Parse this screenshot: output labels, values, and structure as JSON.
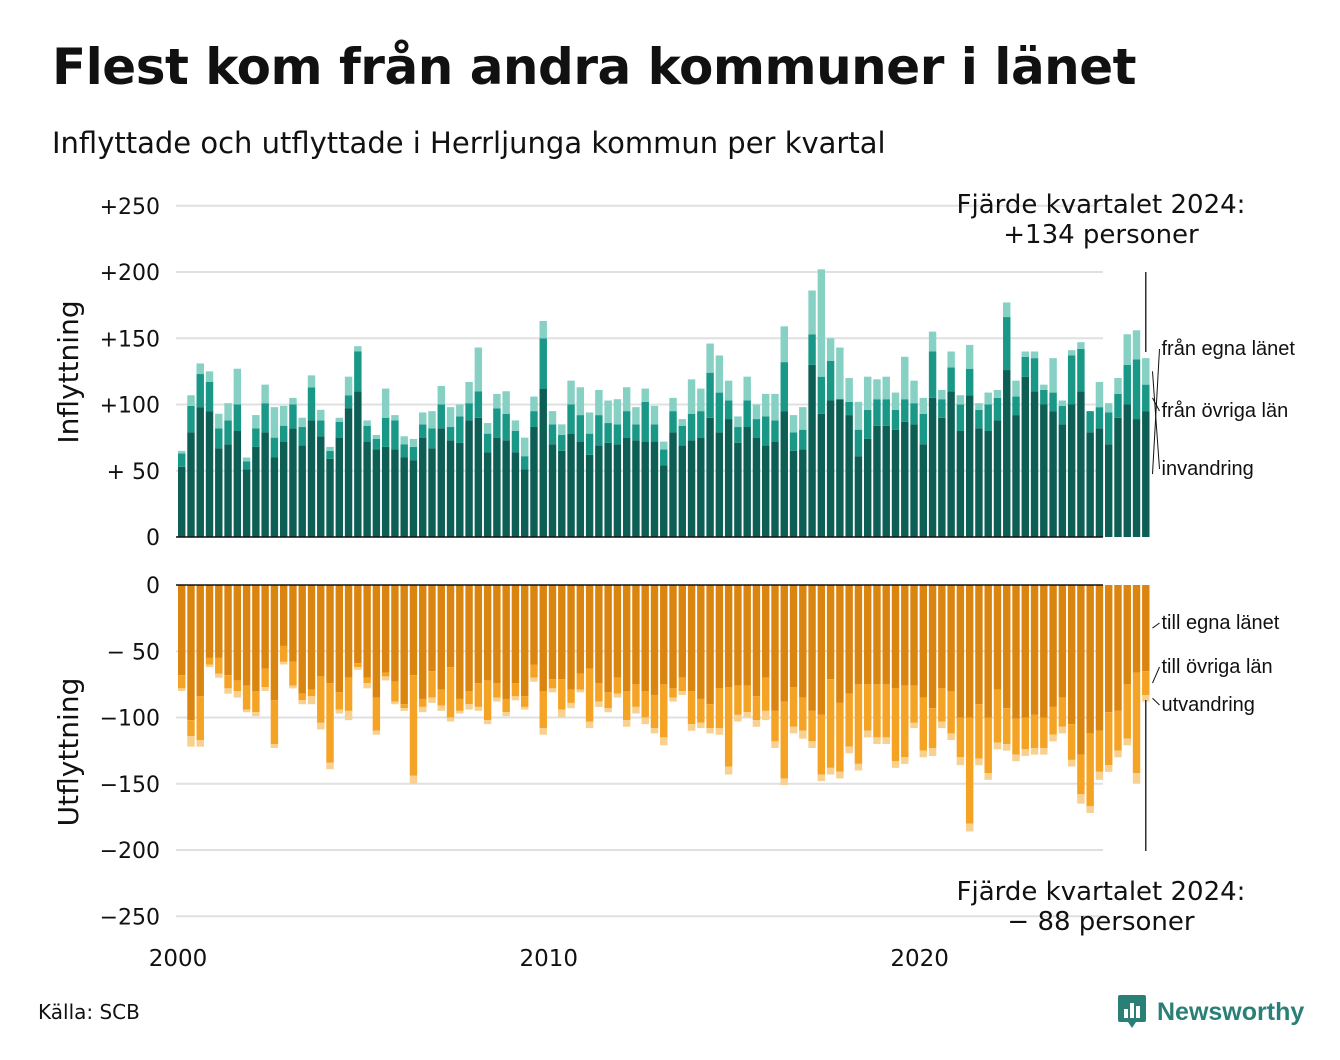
{
  "header": {
    "title": "Flest kom från andra kommuner i länet",
    "subtitle": "Inflyttade och utflyttade i Herrljunga kommun per kvartal"
  },
  "footer": {
    "source": "Källa: SCB",
    "brand": "Newsworthy",
    "brand_icon": "bar-chart-speech-bubble-icon"
  },
  "annotations": {
    "top_line1": "Fjärde kvartalet 2024:",
    "top_line2": "+134 personer",
    "bottom_line1": "Fjärde kvartalet 2024:",
    "bottom_line2": "− 88 personer"
  },
  "colors": {
    "in_egna": "#0d5f55",
    "in_ovriga": "#1a9887",
    "in_invandring": "#86d0c4",
    "ut_egna": "#db8511",
    "ut_ovriga": "#f5a324",
    "ut_utvandring": "#f8d08f",
    "grid": "#e0e0e0",
    "brand": "#2a7f77"
  },
  "chart_data": [
    {
      "type": "bar",
      "stacked": true,
      "ylabel": "Inflyttning",
      "ylim": [
        0,
        250
      ],
      "yticks": [
        0,
        50,
        100,
        150,
        200,
        250
      ],
      "ytick_labels": [
        "0",
        "+ 50",
        "+100",
        "+150",
        "+200",
        "+250"
      ],
      "x_start": "2000 Q1",
      "x_end": "2024 Q4",
      "xticks": [
        "2000",
        "2010",
        "2020"
      ],
      "grid": true,
      "legend": "right, direct labels",
      "series": [
        {
          "name": "från egna länet",
          "color": "#0d5f55",
          "values": [
            53,
            79,
            98,
            95,
            67,
            70,
            80,
            51,
            68,
            79,
            60,
            72,
            82,
            69,
            88,
            76,
            59,
            75,
            97,
            110,
            72,
            66,
            68,
            66,
            60,
            58,
            75,
            67,
            82,
            73,
            71,
            88,
            90,
            64,
            75,
            73,
            64,
            51,
            83,
            112,
            70,
            65,
            78,
            72,
            62,
            69,
            71,
            70,
            75,
            73,
            72,
            72,
            54,
            79,
            69,
            73,
            75,
            90,
            79,
            89,
            71,
            83,
            75,
            69,
            72,
            95,
            65,
            66,
            130,
            93,
            103,
            104,
            92,
            61,
            74,
            84,
            84,
            81,
            87,
            85,
            70,
            105,
            90,
            110,
            80,
            107,
            82,
            80,
            88,
            126,
            92,
            121,
            110,
            100,
            95,
            85,
            100,
            110,
            79,
            82,
            70,
            90,
            100,
            89,
            95
          ]
        },
        {
          "name": "från övriga län",
          "color": "#1a9887",
          "values": [
            10,
            20,
            25,
            22,
            15,
            18,
            20,
            6,
            14,
            22,
            15,
            12,
            18,
            14,
            25,
            12,
            6,
            12,
            10,
            30,
            12,
            8,
            22,
            22,
            10,
            10,
            10,
            15,
            18,
            10,
            20,
            13,
            20,
            14,
            22,
            20,
            16,
            10,
            12,
            38,
            15,
            12,
            22,
            20,
            16,
            23,
            15,
            15,
            20,
            12,
            30,
            13,
            12,
            16,
            15,
            20,
            20,
            34,
            30,
            14,
            12,
            20,
            14,
            22,
            16,
            37,
            14,
            15,
            23,
            28,
            30,
            0,
            10,
            20,
            22,
            20,
            20,
            15,
            17,
            16,
            23,
            35,
            14,
            18,
            20,
            20,
            14,
            20,
            17,
            40,
            14,
            15,
            25,
            11,
            14,
            14,
            37,
            32,
            16,
            16,
            24,
            18,
            30,
            45,
            20
          ]
        },
        {
          "name": "invandring",
          "color": "#86d0c4",
          "values": [
            2,
            8,
            8,
            8,
            11,
            13,
            27,
            3,
            10,
            14,
            23,
            15,
            5,
            7,
            9,
            8,
            3,
            3,
            14,
            4,
            4,
            3,
            22,
            4,
            6,
            6,
            9,
            13,
            14,
            15,
            9,
            16,
            33,
            8,
            11,
            17,
            8,
            14,
            11,
            13,
            10,
            8,
            18,
            21,
            16,
            19,
            17,
            19,
            18,
            13,
            10,
            14,
            6,
            10,
            5,
            26,
            17,
            22,
            28,
            15,
            8,
            18,
            11,
            17,
            20,
            27,
            13,
            17,
            33,
            81,
            17,
            39,
            18,
            21,
            25,
            15,
            17,
            13,
            32,
            17,
            12,
            15,
            7,
            12,
            7,
            18,
            5,
            9,
            6,
            11,
            12,
            4,
            5,
            4,
            26,
            4,
            4,
            5,
            0,
            19,
            7,
            12,
            23,
            22,
            20
          ]
        }
      ]
    },
    {
      "type": "bar",
      "stacked": true,
      "ylabel": "Utflyttning",
      "ylim": [
        -250,
        0
      ],
      "yticks": [
        0,
        -50,
        -100,
        -150,
        -200,
        -250
      ],
      "ytick_labels": [
        "0",
        "− 50",
        "−100",
        "−150",
        "−200",
        "−250"
      ],
      "x_start": "2000 Q1",
      "x_end": "2024 Q4",
      "xticks": [
        "2000",
        "2010",
        "2020"
      ],
      "grid": true,
      "legend": "right, direct labels",
      "series": [
        {
          "name": "till egna länet",
          "color": "#db8511",
          "values": [
            -68,
            -102,
            -84,
            -55,
            -55,
            -68,
            -72,
            -76,
            -80,
            -63,
            -87,
            -46,
            -58,
            -82,
            -79,
            -69,
            -74,
            -81,
            -70,
            -59,
            -70,
            -85,
            -66,
            -73,
            -90,
            -68,
            -86,
            -65,
            -79,
            -62,
            -86,
            -80,
            -74,
            -72,
            -74,
            -86,
            -74,
            -84,
            -60,
            -80,
            -71,
            -71,
            -79,
            -67,
            -63,
            -74,
            -81,
            -70,
            -80,
            -75,
            -80,
            -83,
            -75,
            -78,
            -70,
            -80,
            -86,
            -90,
            -78,
            -77,
            -76,
            -76,
            -84,
            -70,
            -95,
            -88,
            -77,
            -85,
            -95,
            -98,
            -71,
            -89,
            -82,
            -75,
            -75,
            -75,
            -75,
            -78,
            -76,
            -76,
            -85,
            -93,
            -78,
            -80,
            -100,
            -100,
            -90,
            -100,
            -79,
            -93,
            -101,
            -100,
            -98,
            -100,
            -92,
            -85,
            -105,
            -128,
            -112,
            -110,
            -96,
            -95,
            -75,
            -66,
            -65
          ]
        },
        {
          "name": "till övriga län",
          "color": "#f5a324",
          "values": [
            -10,
            -12,
            -33,
            -5,
            -12,
            -10,
            -8,
            -18,
            -16,
            -14,
            -33,
            -12,
            -18,
            -5,
            -5,
            -35,
            -60,
            -13,
            -25,
            -3,
            -4,
            -25,
            -3,
            -15,
            -3,
            -76,
            -6,
            -20,
            -12,
            -38,
            -9,
            -10,
            -18,
            -30,
            -11,
            -10,
            -10,
            -8,
            -10,
            -28,
            -7,
            -23,
            -10,
            -12,
            -40,
            -14,
            -12,
            -12,
            -22,
            -17,
            -20,
            -25,
            -40,
            -7,
            -10,
            -25,
            -18,
            -18,
            -30,
            -60,
            -22,
            -20,
            -18,
            -25,
            -23,
            -58,
            -30,
            -25,
            -23,
            -45,
            -67,
            -52,
            -40,
            -60,
            -35,
            -40,
            -40,
            -55,
            -54,
            -28,
            -40,
            -30,
            -25,
            -32,
            -30,
            -80,
            -41,
            -42,
            -40,
            -27,
            -27,
            -24,
            -25,
            -23,
            -21,
            -22,
            -27,
            -30,
            -55,
            -31,
            -40,
            -30,
            -41,
            -76,
            -18
          ]
        },
        {
          "name": "utvandring",
          "color": "#f8d08f",
          "values": [
            -2,
            -8,
            -5,
            -2,
            -3,
            -4,
            -5,
            -2,
            -3,
            -3,
            -3,
            -2,
            -2,
            -3,
            -6,
            -5,
            -5,
            -3,
            -7,
            -2,
            -4,
            -3,
            -3,
            -2,
            -2,
            -6,
            -4,
            -4,
            -4,
            -3,
            -2,
            -4,
            -3,
            -3,
            -3,
            -3,
            -3,
            -2,
            -3,
            -5,
            -3,
            -6,
            -4,
            -2,
            -5,
            -4,
            -3,
            -3,
            -5,
            -5,
            -5,
            -4,
            -6,
            -3,
            -3,
            -5,
            -4,
            -4,
            -5,
            -6,
            -5,
            -4,
            -5,
            -7,
            -5,
            -5,
            -5,
            -6,
            -5,
            -5,
            -5,
            -5,
            -5,
            -5,
            -5,
            -5,
            -5,
            -5,
            -5,
            -4,
            -5,
            -6,
            -5,
            -5,
            -6,
            -6,
            -5,
            -5,
            -5,
            -5,
            -5,
            -5,
            -5,
            -5,
            -5,
            -5,
            -5,
            -7,
            -5,
            -6,
            -5,
            -5,
            -5,
            -8,
            -5
          ]
        }
      ]
    }
  ]
}
